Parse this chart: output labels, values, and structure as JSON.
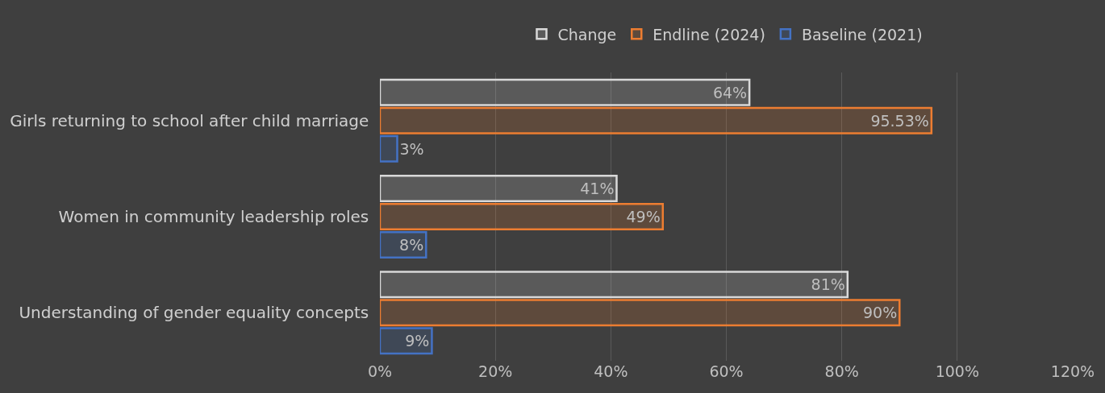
{
  "chart_data": {
    "type": "bar",
    "orientation": "horizontal",
    "categories": [
      "Girls returning to school after child marriage",
      "Women in community leadership roles",
      "Understanding of gender equality concepts"
    ],
    "series": [
      {
        "name": "Change",
        "color": "#d9d9d9",
        "values": [
          64,
          41,
          81
        ],
        "value_labels": [
          "64%",
          "41%",
          "81%"
        ]
      },
      {
        "name": "Endline (2024)",
        "color": "#ed7d31",
        "values": [
          95.53,
          49,
          90
        ],
        "value_labels": [
          "95.53%",
          "49%",
          "90%"
        ]
      },
      {
        "name": "Baseline (2021)",
        "color": "#4472c4",
        "values": [
          3,
          8,
          9
        ],
        "value_labels": [
          "3%",
          "8%",
          "9%"
        ]
      }
    ],
    "xlim": [
      0,
      120
    ],
    "xticks": [
      {
        "value": 0,
        "label": "0%"
      },
      {
        "value": 20,
        "label": "20%"
      },
      {
        "value": 40,
        "label": "40%"
      },
      {
        "value": 60,
        "label": "60%"
      },
      {
        "value": 80,
        "label": "80%"
      },
      {
        "value": 100,
        "label": "100%"
      },
      {
        "value": 120,
        "label": "120%"
      }
    ],
    "grid": "x",
    "legend": "top"
  }
}
